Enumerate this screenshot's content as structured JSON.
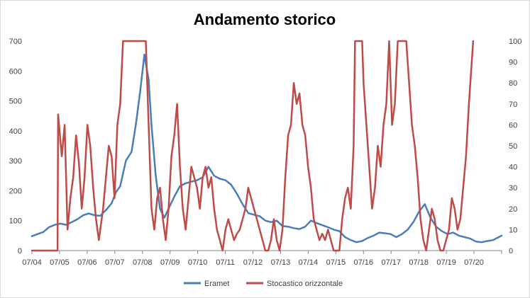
{
  "chart_data": {
    "type": "line",
    "title": "Andamento storico",
    "xlabel": "",
    "ylabel": "",
    "grid": false,
    "legend_position": "bottom",
    "x_tick_labels": [
      "07/04",
      "07/05",
      "07/06",
      "07/07",
      "07/08",
      "07/09",
      "07/10",
      "07/11",
      "07/12",
      "07/13",
      "07/14",
      "07/15",
      "07/16",
      "07/17",
      "07/18",
      "07/19",
      "07/20"
    ],
    "x_range": [
      2004.5,
      2021.0
    ],
    "y_left": {
      "ticks": [
        0,
        100,
        200,
        300,
        400,
        500,
        600,
        700
      ],
      "range": [
        0,
        700
      ]
    },
    "y_right": {
      "ticks": [
        0,
        10,
        20,
        30,
        40,
        50,
        60,
        70,
        80,
        90,
        100
      ],
      "range": [
        0,
        100
      ]
    },
    "series": [
      {
        "name": "Eramet",
        "axis": "left",
        "color": "#4a7ebb",
        "points": [
          [
            2004.5,
            48
          ],
          [
            2004.7,
            55
          ],
          [
            2004.9,
            62
          ],
          [
            2005.1,
            78
          ],
          [
            2005.3,
            86
          ],
          [
            2005.5,
            90
          ],
          [
            2005.7,
            86
          ],
          [
            2005.9,
            95
          ],
          [
            2006.1,
            105
          ],
          [
            2006.3,
            118
          ],
          [
            2006.5,
            124
          ],
          [
            2006.7,
            118
          ],
          [
            2006.9,
            116
          ],
          [
            2007.1,
            135
          ],
          [
            2007.3,
            158
          ],
          [
            2007.45,
            195
          ],
          [
            2007.6,
            215
          ],
          [
            2007.8,
            300
          ],
          [
            2008.0,
            330
          ],
          [
            2008.15,
            420
          ],
          [
            2008.3,
            530
          ],
          [
            2008.45,
            655
          ],
          [
            2008.6,
            570
          ],
          [
            2008.7,
            420
          ],
          [
            2008.85,
            250
          ],
          [
            2009.0,
            140
          ],
          [
            2009.15,
            110
          ],
          [
            2009.3,
            140
          ],
          [
            2009.5,
            180
          ],
          [
            2009.7,
            215
          ],
          [
            2009.9,
            225
          ],
          [
            2010.1,
            230
          ],
          [
            2010.3,
            235
          ],
          [
            2010.5,
            245
          ],
          [
            2010.7,
            280
          ],
          [
            2010.9,
            250
          ],
          [
            2011.1,
            240
          ],
          [
            2011.3,
            235
          ],
          [
            2011.5,
            220
          ],
          [
            2011.7,
            190
          ],
          [
            2011.9,
            155
          ],
          [
            2012.1,
            125
          ],
          [
            2012.3,
            120
          ],
          [
            2012.5,
            115
          ],
          [
            2012.7,
            100
          ],
          [
            2012.9,
            95
          ],
          [
            2013.1,
            100
          ],
          [
            2013.3,
            82
          ],
          [
            2013.5,
            80
          ],
          [
            2013.7,
            75
          ],
          [
            2013.9,
            72
          ],
          [
            2014.1,
            80
          ],
          [
            2014.3,
            100
          ],
          [
            2014.5,
            92
          ],
          [
            2014.7,
            85
          ],
          [
            2014.9,
            78
          ],
          [
            2015.1,
            70
          ],
          [
            2015.3,
            65
          ],
          [
            2015.5,
            45
          ],
          [
            2015.7,
            35
          ],
          [
            2015.9,
            28
          ],
          [
            2016.1,
            32
          ],
          [
            2016.3,
            42
          ],
          [
            2016.5,
            50
          ],
          [
            2016.7,
            60
          ],
          [
            2016.9,
            58
          ],
          [
            2017.1,
            55
          ],
          [
            2017.3,
            45
          ],
          [
            2017.5,
            55
          ],
          [
            2017.7,
            70
          ],
          [
            2017.9,
            95
          ],
          [
            2018.1,
            130
          ],
          [
            2018.3,
            155
          ],
          [
            2018.5,
            110
          ],
          [
            2018.7,
            80
          ],
          [
            2018.9,
            65
          ],
          [
            2019.1,
            55
          ],
          [
            2019.3,
            60
          ],
          [
            2019.5,
            50
          ],
          [
            2019.7,
            45
          ],
          [
            2019.9,
            40
          ],
          [
            2020.1,
            30
          ],
          [
            2020.3,
            28
          ],
          [
            2020.5,
            32
          ],
          [
            2020.7,
            35
          ],
          [
            2020.9,
            45
          ],
          [
            2021.0,
            50
          ]
        ]
      },
      {
        "name": "Stocastico orizzontale",
        "axis": "right",
        "color": "#be4b48",
        "points": [
          [
            2004.5,
            0
          ],
          [
            2005.4,
            0
          ],
          [
            2005.42,
            65
          ],
          [
            2005.55,
            45
          ],
          [
            2005.65,
            60
          ],
          [
            2005.75,
            10
          ],
          [
            2005.85,
            25
          ],
          [
            2005.95,
            35
          ],
          [
            2006.05,
            55
          ],
          [
            2006.15,
            42
          ],
          [
            2006.25,
            20
          ],
          [
            2006.35,
            35
          ],
          [
            2006.45,
            60
          ],
          [
            2006.55,
            50
          ],
          [
            2006.65,
            30
          ],
          [
            2006.75,
            15
          ],
          [
            2006.85,
            5
          ],
          [
            2007.0,
            20
          ],
          [
            2007.1,
            35
          ],
          [
            2007.2,
            50
          ],
          [
            2007.3,
            45
          ],
          [
            2007.4,
            25
          ],
          [
            2007.5,
            60
          ],
          [
            2007.6,
            70
          ],
          [
            2007.7,
            100
          ],
          [
            2008.5,
            100
          ],
          [
            2008.6,
            60
          ],
          [
            2008.7,
            20
          ],
          [
            2008.8,
            10
          ],
          [
            2008.9,
            25
          ],
          [
            2009.0,
            30
          ],
          [
            2009.1,
            15
          ],
          [
            2009.2,
            5
          ],
          [
            2009.3,
            20
          ],
          [
            2009.4,
            45
          ],
          [
            2009.5,
            55
          ],
          [
            2009.6,
            70
          ],
          [
            2009.7,
            40
          ],
          [
            2009.8,
            20
          ],
          [
            2009.9,
            10
          ],
          [
            2010.0,
            25
          ],
          [
            2010.1,
            40
          ],
          [
            2010.2,
            35
          ],
          [
            2010.3,
            30
          ],
          [
            2010.4,
            20
          ],
          [
            2010.5,
            35
          ],
          [
            2010.6,
            40
          ],
          [
            2010.7,
            30
          ],
          [
            2010.8,
            35
          ],
          [
            2010.9,
            20
          ],
          [
            2011.0,
            10
          ],
          [
            2011.1,
            5
          ],
          [
            2011.2,
            0
          ],
          [
            2011.3,
            10
          ],
          [
            2011.4,
            15
          ],
          [
            2011.5,
            10
          ],
          [
            2011.6,
            5
          ],
          [
            2011.7,
            8
          ],
          [
            2011.8,
            10
          ],
          [
            2011.9,
            15
          ],
          [
            2012.0,
            20
          ],
          [
            2012.1,
            30
          ],
          [
            2012.2,
            25
          ],
          [
            2012.3,
            20
          ],
          [
            2012.4,
            15
          ],
          [
            2012.5,
            10
          ],
          [
            2012.6,
            5
          ],
          [
            2012.7,
            0
          ],
          [
            2012.8,
            0
          ],
          [
            2012.9,
            5
          ],
          [
            2013.0,
            15
          ],
          [
            2013.1,
            5
          ],
          [
            2013.2,
            0
          ],
          [
            2013.3,
            10
          ],
          [
            2013.4,
            35
          ],
          [
            2013.5,
            55
          ],
          [
            2013.6,
            60
          ],
          [
            2013.7,
            80
          ],
          [
            2013.8,
            70
          ],
          [
            2013.9,
            75
          ],
          [
            2014.0,
            60
          ],
          [
            2014.1,
            55
          ],
          [
            2014.2,
            40
          ],
          [
            2014.3,
            30
          ],
          [
            2014.4,
            15
          ],
          [
            2014.5,
            10
          ],
          [
            2014.6,
            5
          ],
          [
            2014.7,
            8
          ],
          [
            2014.8,
            5
          ],
          [
            2014.9,
            10
          ],
          [
            2015.0,
            5
          ],
          [
            2015.1,
            0
          ],
          [
            2015.2,
            0
          ],
          [
            2015.3,
            0
          ],
          [
            2015.4,
            15
          ],
          [
            2015.5,
            25
          ],
          [
            2015.6,
            30
          ],
          [
            2015.7,
            20
          ],
          [
            2015.8,
            50
          ],
          [
            2015.85,
            100
          ],
          [
            2016.1,
            100
          ],
          [
            2016.15,
            80
          ],
          [
            2016.25,
            60
          ],
          [
            2016.35,
            40
          ],
          [
            2016.45,
            20
          ],
          [
            2016.55,
            30
          ],
          [
            2016.65,
            50
          ],
          [
            2016.75,
            40
          ],
          [
            2016.85,
            60
          ],
          [
            2016.95,
            70
          ],
          [
            2017.05,
            100
          ],
          [
            2017.15,
            60
          ],
          [
            2017.25,
            70
          ],
          [
            2017.35,
            100
          ],
          [
            2017.65,
            100
          ],
          [
            2017.75,
            80
          ],
          [
            2017.85,
            60
          ],
          [
            2017.95,
            50
          ],
          [
            2018.05,
            35
          ],
          [
            2018.15,
            15
          ],
          [
            2018.25,
            5
          ],
          [
            2018.35,
            0
          ],
          [
            2018.45,
            10
          ],
          [
            2018.55,
            20
          ],
          [
            2018.65,
            15
          ],
          [
            2018.75,
            5
          ],
          [
            2018.85,
            0
          ],
          [
            2018.95,
            0
          ],
          [
            2019.05,
            5
          ],
          [
            2019.15,
            10
          ],
          [
            2019.25,
            25
          ],
          [
            2019.35,
            20
          ],
          [
            2019.45,
            10
          ],
          [
            2019.55,
            15
          ],
          [
            2019.65,
            30
          ],
          [
            2019.75,
            45
          ],
          [
            2019.85,
            70
          ],
          [
            2019.95,
            90
          ],
          [
            2020.0,
            100
          ]
        ]
      }
    ]
  }
}
